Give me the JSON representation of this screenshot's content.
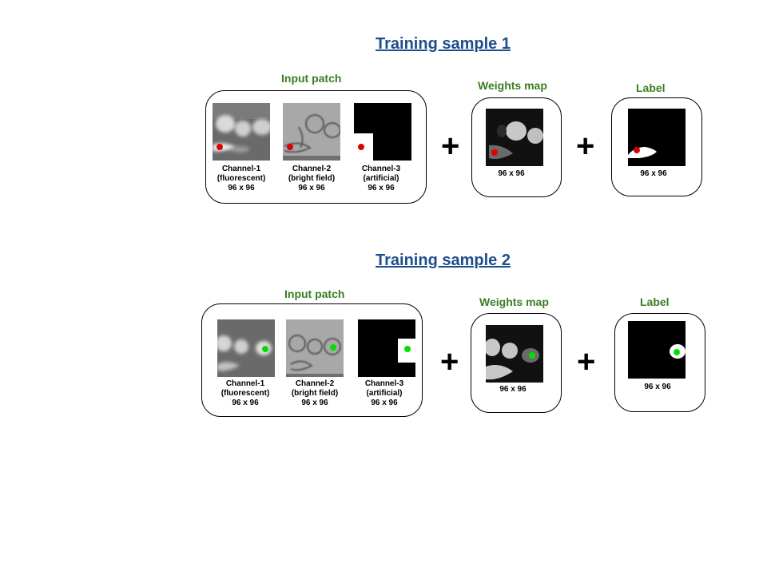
{
  "samples": [
    {
      "title": "Training sample 1",
      "input_label": "Input patch",
      "weights_label": "Weights map",
      "label_label": "Label",
      "dot_color": "#e00000",
      "channels": [
        {
          "name": "Channel-1",
          "desc": "(fluorescent)",
          "size": "96 x 96"
        },
        {
          "name": "Channel-2",
          "desc": "(bright field)",
          "size": "96 x 96"
        },
        {
          "name": "Channel-3",
          "desc": "(artificial)",
          "size": "96 x 96"
        }
      ],
      "weights_size": "96 x 96",
      "label_size": "96 x 96",
      "plus_symbol": "+"
    },
    {
      "title": "Training sample 2",
      "input_label": "Input patch",
      "weights_label": "Weights map",
      "label_label": "Label",
      "dot_color": "#00e000",
      "channels": [
        {
          "name": "Channel-1",
          "desc": "(fluorescent)",
          "size": "96 x 96"
        },
        {
          "name": "Channel-2",
          "desc": "(bright field)",
          "size": "96 x 96"
        },
        {
          "name": "Channel-3",
          "desc": "(artificial)",
          "size": "96 x 96"
        }
      ],
      "weights_size": "96 x 96",
      "label_size": "96 x 96",
      "plus_symbol": "+"
    }
  ],
  "colors": {
    "title": "#1f4e8c",
    "group_label": "#3a7d22"
  }
}
